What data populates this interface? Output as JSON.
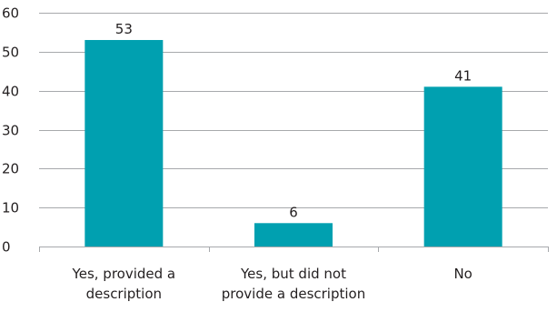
{
  "chart_data": {
    "type": "bar",
    "categories": [
      [
        "Yes, provided a",
        "description"
      ],
      [
        "Yes, but did not",
        "provide a description"
      ],
      [
        "No"
      ]
    ],
    "values": [
      53,
      6,
      41
    ],
    "data_labels": [
      "53",
      "6",
      "41"
    ],
    "ylim": [
      0,
      60
    ],
    "yticks": [
      0,
      10,
      20,
      30,
      40,
      50,
      60
    ],
    "ytick_labels": [
      "0",
      "10",
      "20",
      "30",
      "40",
      "50",
      "60"
    ],
    "grid": true,
    "bar_color": "#00a0b0",
    "grid_color": "#a7a9ac",
    "text_color": "#231f20"
  }
}
